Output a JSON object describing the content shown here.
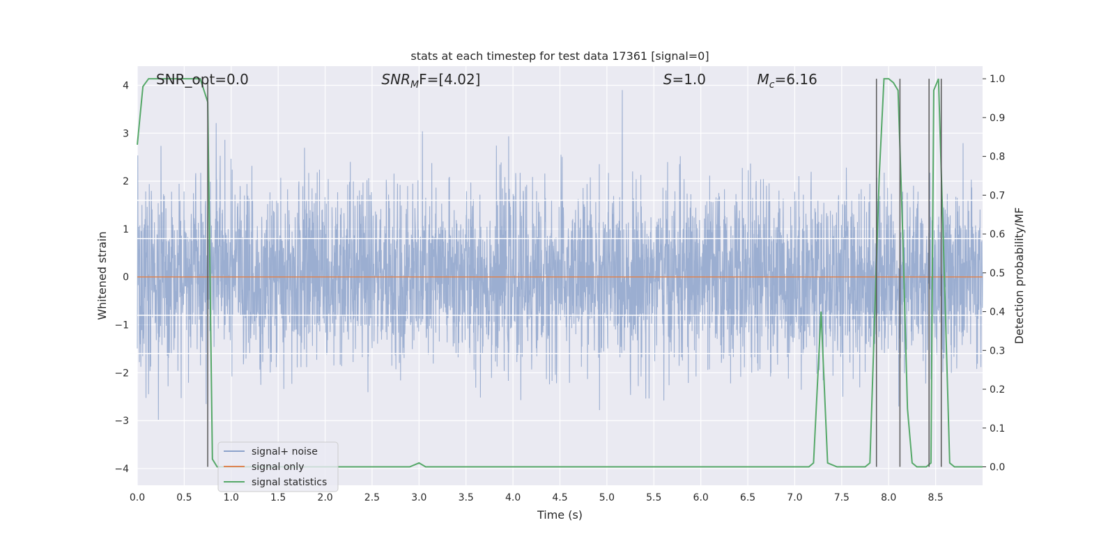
{
  "chart_data": {
    "type": "line",
    "title": "stats at each timestep for test data 17361 [signal=0]",
    "xlabel": "Time (s)",
    "ylabel": "Whitened strain",
    "ylabel_right": "Detection probability/MF",
    "xlim": [
      0.0,
      9.0
    ],
    "ylim": [
      -4.35,
      4.4
    ],
    "ylim_right": [
      -0.0475,
      1.0325
    ],
    "x_ticks": [
      "0.0",
      "0.5",
      "1.0",
      "1.5",
      "2.0",
      "2.5",
      "3.0",
      "3.5",
      "4.0",
      "4.5",
      "5.0",
      "5.5",
      "6.0",
      "6.5",
      "7.0",
      "7.5",
      "8.0",
      "8.5"
    ],
    "y_ticks": [
      "4",
      "3",
      "2",
      "1",
      "0",
      "−1",
      "−2",
      "−3",
      "−4"
    ],
    "y_right_ticks": [
      "1.0",
      "0.9",
      "0.8",
      "0.7",
      "0.6",
      "0.5",
      "0.4",
      "0.3",
      "0.2",
      "0.1",
      "0.0"
    ],
    "grid": true,
    "legend_placement": "lower-left",
    "annotations": [
      {
        "text": "SNR_opt=0.0",
        "x": 0.2
      },
      {
        "math_base": "SNR",
        "math_sub": "M",
        "math_rest": "F=[4.02]",
        "x": 2.6
      },
      {
        "math_base": "S",
        "math_rest": "=1.0",
        "x": 5.6
      },
      {
        "math_base": "M",
        "math_sub": "c",
        "math_rest": "=6.16",
        "x": 6.6
      }
    ],
    "series": [
      {
        "name": "signal+ noise",
        "color": "#4c72b0",
        "kind": "noise",
        "approx_sigma": 0.8,
        "peak_max": 3.9,
        "peak_min": -3.7
      },
      {
        "name": "signal only",
        "color": "#dd8452",
        "kind": "flat",
        "values": [
          0.0,
          0.0
        ],
        "x": [
          0.0,
          9.0
        ]
      },
      {
        "name": "signal statistics",
        "color": "#55a868",
        "kind": "line",
        "x": [
          0.0,
          0.06,
          0.12,
          0.2,
          0.3,
          0.4,
          0.5,
          0.6,
          0.67,
          0.75,
          0.8,
          0.85,
          0.9,
          1.0,
          1.5,
          2.0,
          2.5,
          2.9,
          3.0,
          3.07,
          3.5,
          4.0,
          4.5,
          5.0,
          5.5,
          6.0,
          6.5,
          6.9,
          7.0,
          7.15,
          7.2,
          7.28,
          7.35,
          7.45,
          7.6,
          7.75,
          7.8,
          7.9,
          7.95,
          8.0,
          8.05,
          8.1,
          8.15,
          8.2,
          8.25,
          8.3,
          8.4,
          8.45,
          8.48,
          8.53,
          8.58,
          8.65,
          8.7,
          8.8,
          9.0
        ],
        "values": [
          0.83,
          0.98,
          1.0,
          1.0,
          1.0,
          1.0,
          1.0,
          1.0,
          1.0,
          0.94,
          0.02,
          0.0,
          0.0,
          0.0,
          0.0,
          0.0,
          0.0,
          0.0,
          0.01,
          0.0,
          0.0,
          0.0,
          0.0,
          0.0,
          0.0,
          0.0,
          0.0,
          0.0,
          0.0,
          0.0,
          0.01,
          0.4,
          0.01,
          0.0,
          0.0,
          0.0,
          0.01,
          0.75,
          1.0,
          1.0,
          0.99,
          0.97,
          0.6,
          0.15,
          0.01,
          0.0,
          0.0,
          0.01,
          0.97,
          1.0,
          0.6,
          0.01,
          0.0,
          0.0,
          0.0
        ]
      }
    ],
    "vertical_lines_x": [
      0.75,
      7.87,
      8.12,
      8.43,
      8.56
    ],
    "horizontal_lines_y": [
      1.6,
      0.8,
      -0.8,
      -1.6
    ]
  }
}
